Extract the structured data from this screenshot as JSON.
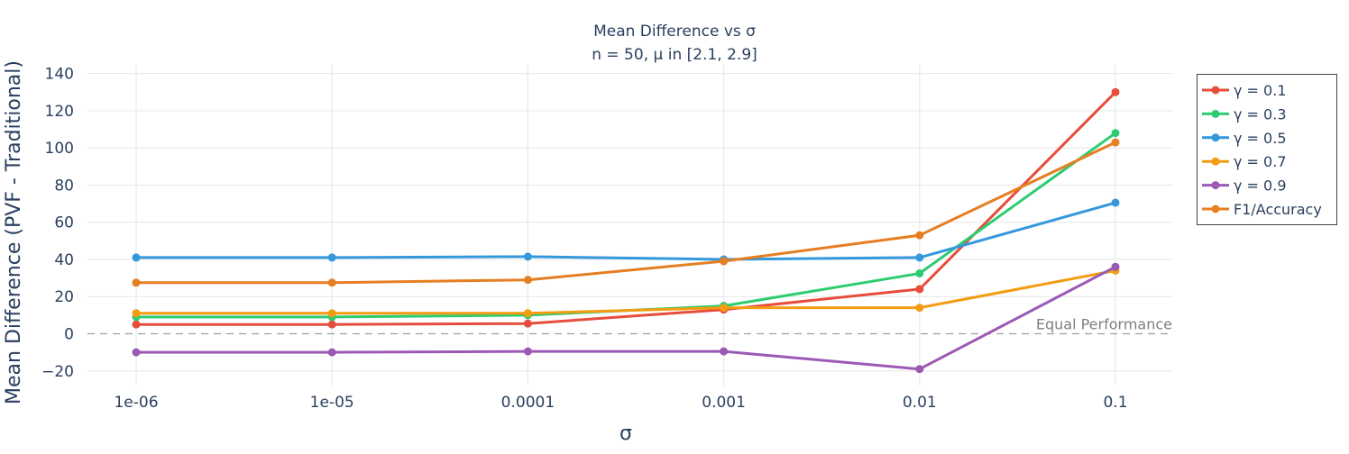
{
  "chart_data": {
    "type": "line",
    "title": "Mean Difference vs σ",
    "subtitle": "n = 50, μ in [2.1, 2.9]",
    "xlabel": "σ",
    "ylabel": "Mean Difference (PVF - Traditional)",
    "x_scale": "log",
    "categories": [
      "1e-06",
      "1e-05",
      "0.0001",
      "0.001",
      "0.01",
      "0.1"
    ],
    "x": [
      1e-06,
      1e-05,
      0.0001,
      0.001,
      0.01,
      0.1
    ],
    "ylim": [
      -30,
      145
    ],
    "yticks": [
      -20,
      0,
      20,
      40,
      60,
      80,
      100,
      120,
      140
    ],
    "ytick_labels": [
      "−20",
      "0",
      "20",
      "40",
      "60",
      "80",
      "100",
      "120",
      "140"
    ],
    "grid": true,
    "legend_position": "right",
    "reference_line": {
      "y": 0,
      "label": "Equal Performance",
      "color": "#a0a0a0"
    },
    "series": [
      {
        "name": "γ = 0.1",
        "color": "#e74c3c",
        "values": [
          5,
          5,
          5.5,
          13,
          24,
          130
        ]
      },
      {
        "name": "γ = 0.3",
        "color": "#2ecc71",
        "values": [
          9,
          9,
          10,
          15,
          32.5,
          108
        ]
      },
      {
        "name": "γ = 0.5",
        "color": "#3498db",
        "values": [
          41,
          41,
          41.5,
          40,
          41,
          70.5
        ]
      },
      {
        "name": "γ = 0.7",
        "color": "#f39c12",
        "values": [
          11,
          11,
          11,
          14,
          14,
          34
        ]
      },
      {
        "name": "γ = 0.9",
        "color": "#9b59b6",
        "values": [
          -10,
          -10,
          -9.5,
          -9.5,
          -19,
          36
        ]
      },
      {
        "name": "F1/Accuracy",
        "color": "#e67e22",
        "values": [
          27.5,
          27.5,
          29,
          39,
          53,
          103
        ]
      }
    ]
  }
}
